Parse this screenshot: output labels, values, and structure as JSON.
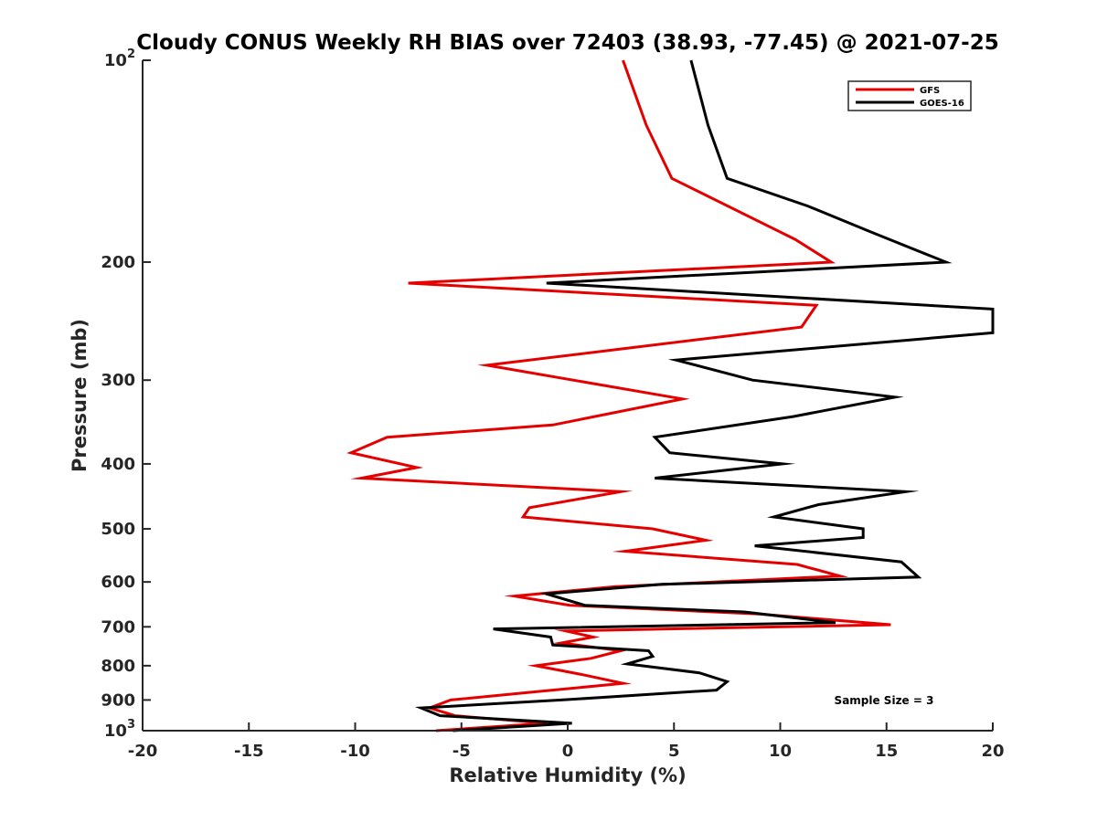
{
  "chart_data": {
    "type": "line",
    "title": "Cloudy CONUS Weekly RH BIAS over 72403 (38.93, -77.45) @ 2021-07-25",
    "xlabel": "Relative Humidity (%)",
    "ylabel": "Pressure (mb)",
    "xlim": [
      -20,
      20
    ],
    "ylim": [
      100,
      1000
    ],
    "y_scale": "log",
    "y_reversed": true,
    "grid": false,
    "legend_position": "top-right",
    "x_ticks": [
      "-20",
      "-15",
      "-10",
      "-5",
      "0",
      "5",
      "10",
      "15",
      "20"
    ],
    "y_ticks": [
      {
        "value": 100,
        "base": "10",
        "exp": "2"
      },
      {
        "value": 200,
        "base": "200",
        "exp": ""
      },
      {
        "value": 300,
        "base": "300",
        "exp": ""
      },
      {
        "value": 400,
        "base": "400",
        "exp": ""
      },
      {
        "value": 500,
        "base": "500",
        "exp": ""
      },
      {
        "value": 600,
        "base": "600",
        "exp": ""
      },
      {
        "value": 700,
        "base": "700",
        "exp": ""
      },
      {
        "value": 800,
        "base": "800",
        "exp": ""
      },
      {
        "value": 900,
        "base": "900",
        "exp": ""
      },
      {
        "value": 1000,
        "base": "10",
        "exp": "3"
      }
    ],
    "series": [
      {
        "name": "GFS",
        "color": "#e50000",
        "points": [
          {
            "x": 2.6,
            "y": 100
          },
          {
            "x": 3.7,
            "y": 125
          },
          {
            "x": 4.9,
            "y": 150
          },
          {
            "x": 10.7,
            "y": 185
          },
          {
            "x": 12.4,
            "y": 200
          },
          {
            "x": -7.5,
            "y": 215
          },
          {
            "x": 11.7,
            "y": 232
          },
          {
            "x": 11.0,
            "y": 250
          },
          {
            "x": -3.8,
            "y": 285
          },
          {
            "x": 5.4,
            "y": 320
          },
          {
            "x": -0.7,
            "y": 350
          },
          {
            "x": -8.5,
            "y": 365
          },
          {
            "x": -10.2,
            "y": 385
          },
          {
            "x": -7.1,
            "y": 405
          },
          {
            "x": -9.7,
            "y": 420
          },
          {
            "x": 2.5,
            "y": 440
          },
          {
            "x": -1.8,
            "y": 465
          },
          {
            "x": -2.1,
            "y": 480
          },
          {
            "x": 4.0,
            "y": 500
          },
          {
            "x": 6.5,
            "y": 520
          },
          {
            "x": 2.7,
            "y": 540
          },
          {
            "x": 10.8,
            "y": 565
          },
          {
            "x": 12.8,
            "y": 588
          },
          {
            "x": 2.2,
            "y": 610
          },
          {
            "x": -2.5,
            "y": 630
          },
          {
            "x": 0.1,
            "y": 650
          },
          {
            "x": 9.0,
            "y": 670
          },
          {
            "x": 15.2,
            "y": 695
          },
          {
            "x": -0.1,
            "y": 710
          },
          {
            "x": 1.2,
            "y": 725
          },
          {
            "x": -0.3,
            "y": 740
          },
          {
            "x": 2.5,
            "y": 760
          },
          {
            "x": 1.1,
            "y": 780
          },
          {
            "x": -1.5,
            "y": 800
          },
          {
            "x": 0.7,
            "y": 825
          },
          {
            "x": 2.6,
            "y": 850
          },
          {
            "x": -1.5,
            "y": 875
          },
          {
            "x": -5.5,
            "y": 900
          },
          {
            "x": -6.5,
            "y": 925
          },
          {
            "x": -5.3,
            "y": 950
          },
          {
            "x": -1.0,
            "y": 975
          },
          {
            "x": -6.2,
            "y": 1000
          }
        ]
      },
      {
        "name": "GOES-16",
        "color": "#000000",
        "points": [
          {
            "x": 5.8,
            "y": 100
          },
          {
            "x": 6.6,
            "y": 125
          },
          {
            "x": 7.5,
            "y": 150
          },
          {
            "x": 11.3,
            "y": 165
          },
          {
            "x": 14.2,
            "y": 180
          },
          {
            "x": 17.8,
            "y": 200
          },
          {
            "x": -1.0,
            "y": 215
          },
          {
            "x": 20.0,
            "y": 235
          },
          {
            "x": 20.0,
            "y": 255
          },
          {
            "x": 5.1,
            "y": 280
          },
          {
            "x": 8.7,
            "y": 300
          },
          {
            "x": 15.4,
            "y": 318
          },
          {
            "x": 10.6,
            "y": 340
          },
          {
            "x": 4.1,
            "y": 365
          },
          {
            "x": 4.8,
            "y": 385
          },
          {
            "x": 10.1,
            "y": 400
          },
          {
            "x": 4.1,
            "y": 420
          },
          {
            "x": 15.9,
            "y": 440
          },
          {
            "x": 11.8,
            "y": 460
          },
          {
            "x": 9.7,
            "y": 480
          },
          {
            "x": 13.9,
            "y": 500
          },
          {
            "x": 13.9,
            "y": 515
          },
          {
            "x": 8.8,
            "y": 530
          },
          {
            "x": 15.7,
            "y": 560
          },
          {
            "x": 16.5,
            "y": 590
          },
          {
            "x": 4.4,
            "y": 605
          },
          {
            "x": -1.0,
            "y": 625
          },
          {
            "x": 0.8,
            "y": 650
          },
          {
            "x": 8.3,
            "y": 665
          },
          {
            "x": 12.6,
            "y": 690
          },
          {
            "x": -3.5,
            "y": 705
          },
          {
            "x": -0.8,
            "y": 725
          },
          {
            "x": -0.7,
            "y": 745
          },
          {
            "x": 3.8,
            "y": 760
          },
          {
            "x": 4.0,
            "y": 775
          },
          {
            "x": 2.8,
            "y": 795
          },
          {
            "x": 6.2,
            "y": 820
          },
          {
            "x": 7.5,
            "y": 845
          },
          {
            "x": 7.0,
            "y": 870
          },
          {
            "x": -0.3,
            "y": 900
          },
          {
            "x": -6.9,
            "y": 925
          },
          {
            "x": -6.0,
            "y": 950
          },
          {
            "x": 0.2,
            "y": 975
          },
          {
            "x": -5.4,
            "y": 1000
          }
        ]
      }
    ],
    "annotations": [
      "Sample Size = 3"
    ]
  }
}
